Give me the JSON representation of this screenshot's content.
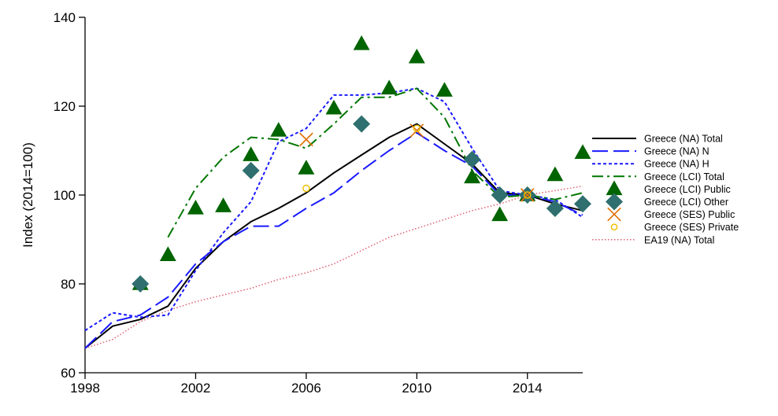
{
  "chart_data": {
    "type": "line",
    "title": "",
    "xlabel": "",
    "ylabel": "Index (2014=100)",
    "xlim": [
      1998,
      2016
    ],
    "ylim": [
      60,
      140
    ],
    "xticks": [
      1998,
      2002,
      2006,
      2010,
      2014
    ],
    "yticks": [
      60,
      80,
      100,
      120,
      140
    ],
    "grid": false,
    "legend_position": "right",
    "series": [
      {
        "name": "Greece (NA) Total",
        "style": "line",
        "dash": "solid",
        "color": "#000000",
        "x": [
          1998,
          1999,
          2000,
          2001,
          2002,
          2003,
          2004,
          2005,
          2006,
          2007,
          2008,
          2009,
          2010,
          2011,
          2012,
          2013,
          2014,
          2015,
          2016
        ],
        "y": [
          65.5,
          70.5,
          72,
          75,
          83.5,
          89.5,
          94,
          97,
          100.5,
          105,
          109,
          113,
          116,
          111.5,
          107,
          100.5,
          100,
          98,
          96.5
        ]
      },
      {
        "name": "Greece (NA) N",
        "style": "line",
        "dash": "longdash",
        "color": "#1a1aff",
        "x": [
          1998,
          1999,
          2000,
          2001,
          2002,
          2003,
          2004,
          2005,
          2006,
          2007,
          2008,
          2009,
          2010,
          2011,
          2012,
          2013,
          2014,
          2015,
          2016
        ],
        "y": [
          65.5,
          71.5,
          73,
          77,
          84.5,
          89.5,
          93,
          93,
          97,
          100.5,
          105.5,
          110,
          114,
          110,
          106.5,
          100,
          100,
          98.5,
          95.5
        ]
      },
      {
        "name": "Greece (NA) H",
        "style": "line",
        "dash": "shortdash",
        "color": "#1a1aff",
        "x": [
          1998,
          1999,
          2000,
          2001,
          2002,
          2003,
          2004,
          2005,
          2006,
          2007,
          2008,
          2009,
          2010,
          2011,
          2012,
          2013,
          2014,
          2015,
          2016
        ],
        "y": [
          69.5,
          73.5,
          72.5,
          73,
          83,
          91.5,
          98.5,
          112,
          115,
          122.5,
          122.5,
          123,
          124,
          121,
          110.5,
          101,
          100,
          99,
          95
        ]
      },
      {
        "name": "Greece (LCI) Total",
        "style": "line",
        "dash": "dashdot",
        "color": "#007700",
        "x": [
          2001,
          2002,
          2003,
          2004,
          2005,
          2006,
          2007,
          2008,
          2009,
          2010,
          2011,
          2012,
          2013,
          2014,
          2015,
          2016
        ],
        "y": [
          90.5,
          101.5,
          108.5,
          113,
          112.5,
          110.5,
          116,
          122,
          122,
          124,
          117.5,
          105.5,
          99.5,
          100,
          99,
          100.5
        ]
      },
      {
        "name": "Greece (LCI) Public",
        "style": "marker",
        "marker": "triangle",
        "color": "#006400",
        "x": [
          2000,
          2001,
          2002,
          2003,
          2004,
          2005,
          2006,
          2007,
          2008,
          2009,
          2010,
          2011,
          2012,
          2013,
          2014,
          2015,
          2016
        ],
        "y": [
          80,
          86.5,
          97,
          97.5,
          109,
          114.5,
          106,
          119.5,
          134,
          124,
          131,
          123.5,
          104,
          95.5,
          100,
          104.5,
          109.5
        ]
      },
      {
        "name": "Greece (LCI) Other",
        "style": "marker",
        "marker": "diamond",
        "color": "#2f6f6f",
        "x": [
          2000,
          2004,
          2008,
          2012,
          2013,
          2014,
          2015,
          2016
        ],
        "y": [
          80,
          105.5,
          116,
          108,
          100,
          100,
          97,
          98
        ]
      },
      {
        "name": "Greece (SES) Public",
        "style": "marker",
        "marker": "x",
        "color": "#e07000",
        "x": [
          2006,
          2010,
          2014
        ],
        "y": [
          112.5,
          114.5,
          100
        ]
      },
      {
        "name": "Greece (SES) Private",
        "style": "marker",
        "marker": "circle",
        "color": "#f0c000",
        "x": [
          2006,
          2010,
          2014
        ],
        "y": [
          101.5,
          115,
          100
        ]
      },
      {
        "name": "EA19 (NA) Total",
        "style": "line",
        "dash": "dotted",
        "color": "#e06070",
        "x": [
          1998,
          1999,
          2000,
          2001,
          2002,
          2003,
          2004,
          2005,
          2006,
          2007,
          2008,
          2009,
          2010,
          2011,
          2012,
          2013,
          2014,
          2015,
          2016
        ],
        "y": [
          65.5,
          67.5,
          71.5,
          74,
          76,
          77.5,
          79,
          81,
          82.5,
          84.5,
          87.5,
          90.5,
          92.5,
          94.5,
          96.5,
          98,
          100,
          101,
          102
        ]
      }
    ]
  }
}
